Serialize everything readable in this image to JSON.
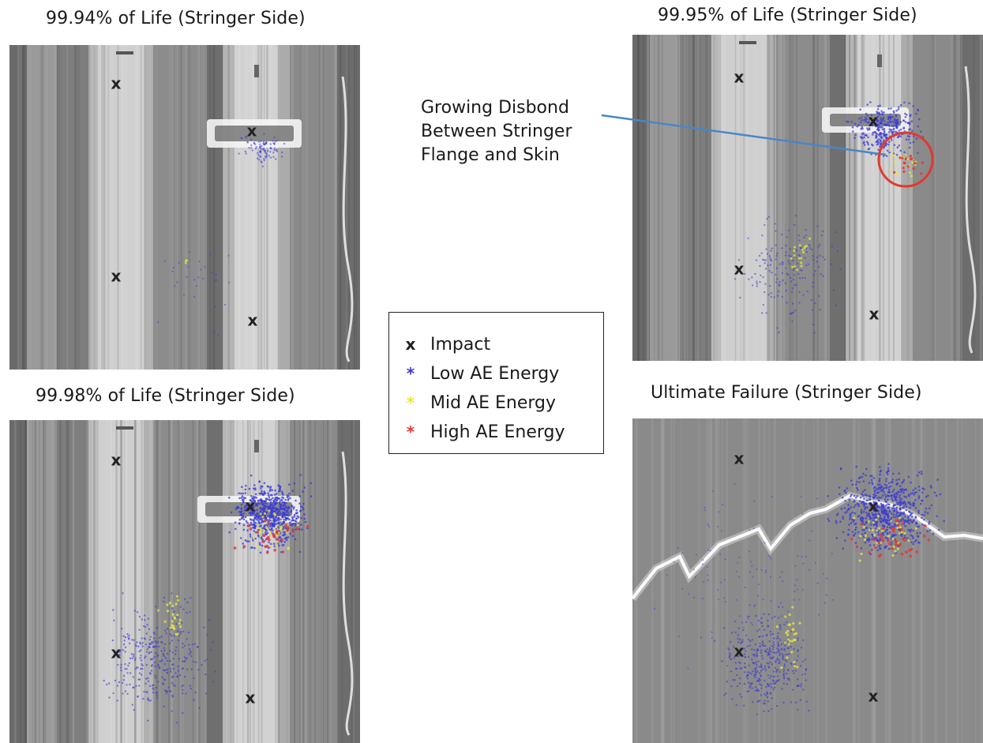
{
  "panels": [
    {
      "id": "p1",
      "title": "99.94% of Life (Stringer Side)"
    },
    {
      "id": "p2",
      "title": "99.95% of Life (Stringer Side)"
    },
    {
      "id": "p3",
      "title": "99.98% of Life (Stringer Side)"
    },
    {
      "id": "p4",
      "title": "Ultimate Failure (Stringer Side)"
    }
  ],
  "annotation": {
    "lines": [
      "Growing Disbond",
      "Between Stringer",
      "Flange and Skin"
    ],
    "line_color": "#4a86c6",
    "circle_color": "#e03a2f"
  },
  "legend": {
    "items": [
      {
        "symbol": "x",
        "label": "Impact",
        "color": "#222222",
        "icon": "x-marker-icon"
      },
      {
        "symbol": "*",
        "label": "Low AE Energy",
        "color": "#3a3ad6",
        "icon": "asterisk-marker-icon"
      },
      {
        "symbol": "*",
        "label": "Mid AE Energy",
        "color": "#e8e83a",
        "icon": "asterisk-marker-icon"
      },
      {
        "symbol": "*",
        "label": "High AE Energy",
        "color": "#e03a3a",
        "icon": "asterisk-marker-icon"
      }
    ]
  }
}
